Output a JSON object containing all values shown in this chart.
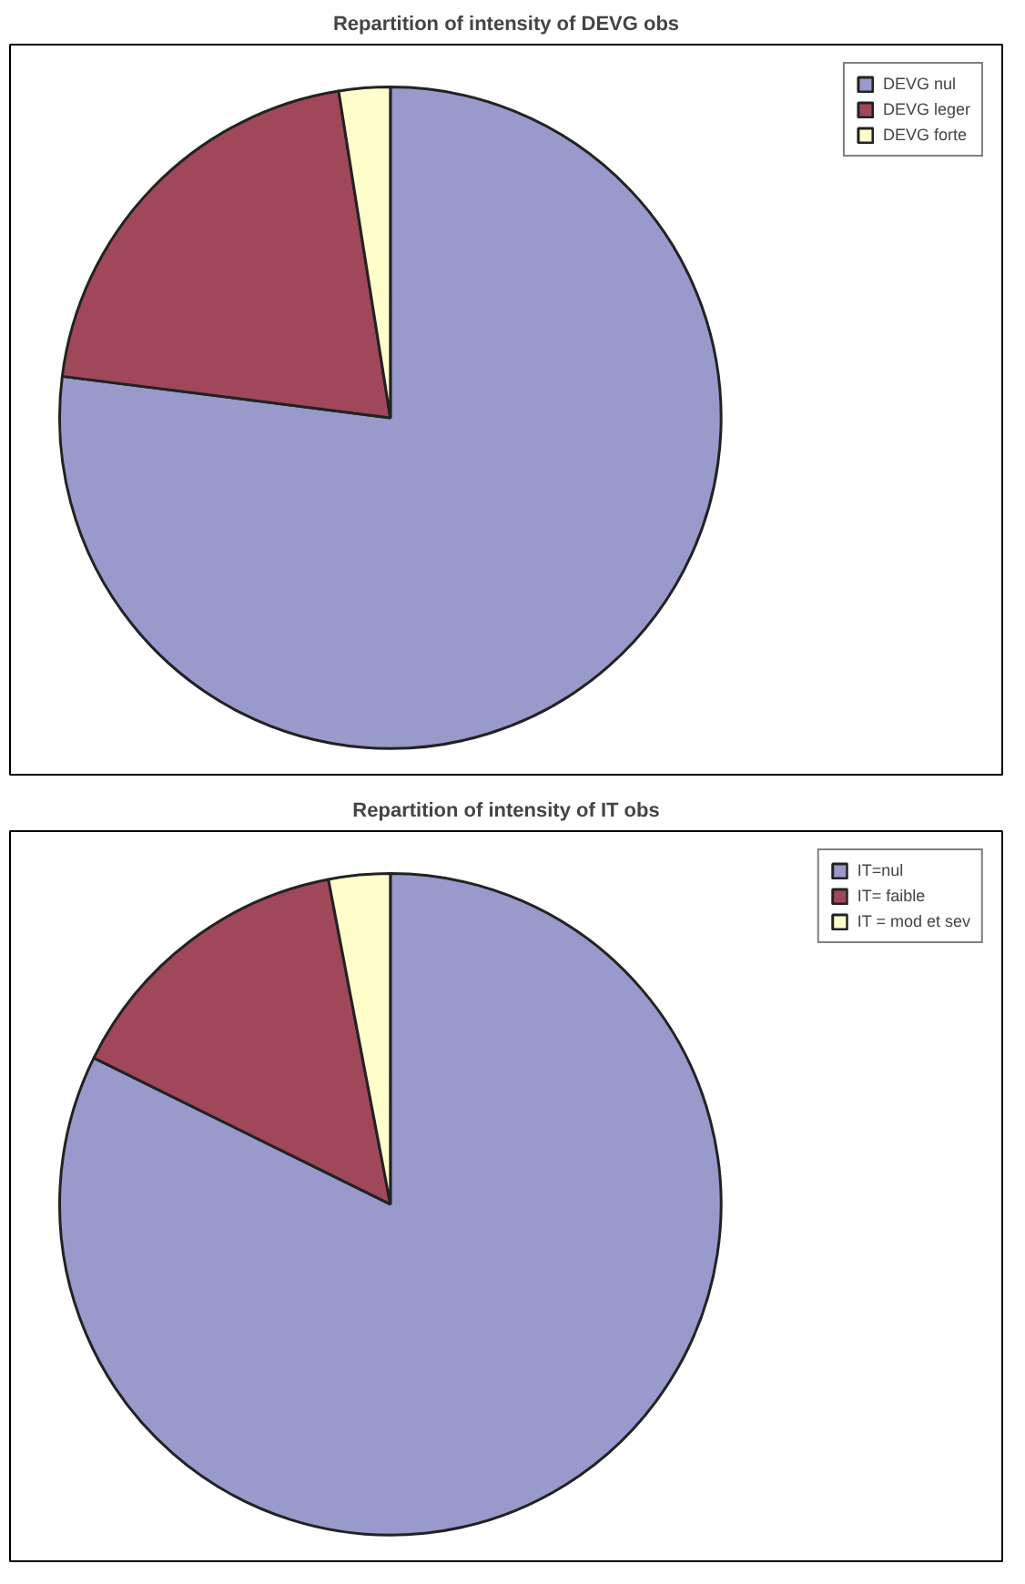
{
  "chart_data": [
    {
      "type": "pie",
      "title": "Repartition of intensity of DEVG obs",
      "categories": [
        "DEVG nul",
        "DEVG leger",
        "DEVG forte"
      ],
      "values": [
        77,
        20.5,
        2.5
      ],
      "colors": [
        "#9999cc",
        "#a0485a",
        "#ffffcc"
      ],
      "legend": "top right"
    },
    {
      "type": "pie",
      "title": "Repartition of intensity of IT obs",
      "categories": [
        "IT=nul",
        "IT= faible",
        "IT = mod et sev"
      ],
      "values": [
        82.3,
        14.7,
        3.0
      ],
      "colors": [
        "#9999cc",
        "#a0485a",
        "#ffffcc"
      ],
      "legend": "top right"
    }
  ]
}
